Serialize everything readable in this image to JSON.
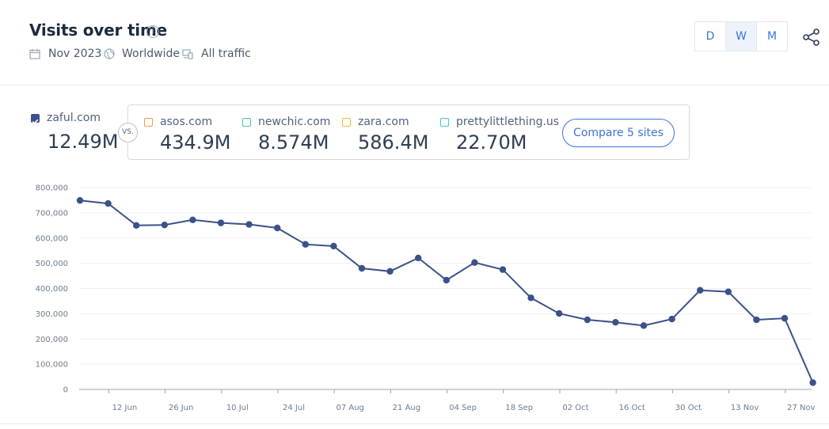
{
  "header": {
    "title": "Visits over time",
    "date": "Nov 2023",
    "region": "Worldwide",
    "traffic": "All traffic",
    "granularity": [
      "D",
      "W",
      "M"
    ],
    "selected_granularity": "W"
  },
  "sites": {
    "primary": {
      "name": "zaful.com",
      "value": "12.49M",
      "checked": true
    },
    "vs_label": "VS.",
    "competitors": [
      {
        "name": "asos.com",
        "value": "434.9M",
        "color": "#f59a45"
      },
      {
        "name": "newchic.com",
        "value": "8.574M",
        "color": "#3dc9b0"
      },
      {
        "name": "zara.com",
        "value": "586.4M",
        "color": "#f4b731"
      },
      {
        "name": "prettylittlething.us",
        "value": "22.70M",
        "color": "#3ec7d9"
      }
    ],
    "compare_label": "Compare 5 sites"
  },
  "colors": {
    "accent": "#3e74d6",
    "line": "#3a5189"
  },
  "chart_data": {
    "type": "line",
    "ylim": [
      0,
      800000
    ],
    "yticks": [
      "800,000",
      "700,000",
      "600,000",
      "500,000",
      "400,000",
      "300,000",
      "200,000",
      "100,000",
      "0"
    ],
    "xticks": [
      "12 Jun",
      "26 Jun",
      "10 Jul",
      "24 Jul",
      "07 Aug",
      "21 Aug",
      "04 Sep",
      "18 Sep",
      "02 Oct",
      "16 Oct",
      "30 Oct",
      "13 Nov",
      "27 Nov"
    ],
    "series": [
      {
        "values": [
          749000,
          737000,
          650000,
          652000,
          672000,
          660000,
          654000,
          640000,
          575000,
          568000,
          480000,
          468000,
          521000,
          433000,
          503000,
          475000,
          363000,
          301000,
          276000,
          266000,
          253000,
          279000,
          393000,
          387000,
          276000,
          282000,
          27000
        ]
      }
    ]
  }
}
